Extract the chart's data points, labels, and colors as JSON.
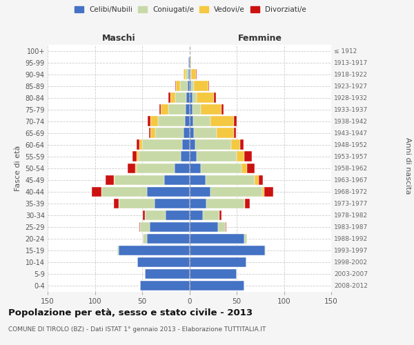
{
  "age_groups": [
    "0-4",
    "5-9",
    "10-14",
    "15-19",
    "20-24",
    "25-29",
    "30-34",
    "35-39",
    "40-44",
    "45-49",
    "50-54",
    "55-59",
    "60-64",
    "65-69",
    "70-74",
    "75-79",
    "80-84",
    "85-89",
    "90-94",
    "95-99",
    "100+"
  ],
  "birth_years": [
    "2008-2012",
    "2003-2007",
    "1998-2002",
    "1993-1997",
    "1988-1992",
    "1983-1987",
    "1978-1982",
    "1973-1977",
    "1968-1972",
    "1963-1967",
    "1958-1962",
    "1953-1957",
    "1948-1952",
    "1943-1947",
    "1938-1942",
    "1933-1937",
    "1928-1932",
    "1923-1927",
    "1918-1922",
    "1913-1917",
    "≤ 1912"
  ],
  "maschi": {
    "celibi": [
      52,
      47,
      55,
      75,
      45,
      42,
      25,
      37,
      45,
      27,
      16,
      9,
      8,
      6,
      5,
      4,
      3,
      2,
      1,
      1,
      0
    ],
    "coniugati": [
      0,
      0,
      0,
      1,
      4,
      10,
      22,
      38,
      48,
      52,
      40,
      45,
      42,
      30,
      28,
      18,
      12,
      8,
      3,
      0,
      0
    ],
    "vedovi": [
      0,
      0,
      0,
      0,
      0,
      0,
      0,
      0,
      0,
      1,
      1,
      2,
      3,
      5,
      8,
      8,
      5,
      4,
      2,
      0,
      0
    ],
    "divorziati": [
      0,
      0,
      0,
      0,
      0,
      1,
      2,
      5,
      10,
      9,
      8,
      4,
      3,
      2,
      3,
      2,
      2,
      1,
      0,
      0,
      0
    ]
  },
  "femmine": {
    "nubili": [
      58,
      50,
      60,
      80,
      58,
      30,
      14,
      18,
      22,
      17,
      12,
      8,
      6,
      5,
      4,
      3,
      3,
      2,
      1,
      1,
      0
    ],
    "coniugate": [
      0,
      0,
      0,
      1,
      3,
      8,
      18,
      40,
      55,
      52,
      43,
      42,
      38,
      24,
      18,
      9,
      5,
      3,
      1,
      0,
      0
    ],
    "vedove": [
      0,
      0,
      0,
      0,
      0,
      0,
      0,
      1,
      2,
      4,
      6,
      8,
      10,
      18,
      25,
      22,
      18,
      15,
      5,
      1,
      0
    ],
    "divorziate": [
      0,
      0,
      0,
      0,
      0,
      1,
      2,
      5,
      10,
      5,
      8,
      8,
      3,
      2,
      3,
      2,
      2,
      1,
      1,
      0,
      0
    ]
  },
  "colors": {
    "celibi": "#4472c4",
    "coniugati": "#c8d9a8",
    "vedovi": "#f5c842",
    "divorziati": "#cc1111"
  },
  "legend_labels": [
    "Celibi/Nubili",
    "Coniugati/e",
    "Vedovi/e",
    "Divorziati/e"
  ],
  "title": "Popolazione per età, sesso e stato civile - 2013",
  "subtitle": "COMUNE DI TIROLO (BZ) - Dati ISTAT 1° gennaio 2013 - Elaborazione TUTTITALIA.IT",
  "xlabel_left": "Maschi",
  "xlabel_right": "Femmine",
  "ylabel_left": "Fasce di età",
  "ylabel_right": "Anni di nascita",
  "xlim": 150,
  "bg_color": "#f5f5f5",
  "plot_bg": "#ffffff"
}
